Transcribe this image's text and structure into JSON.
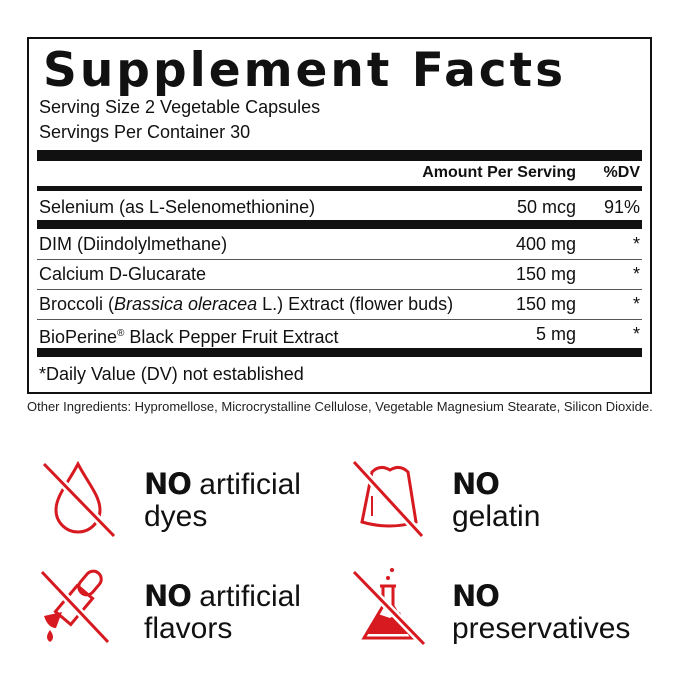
{
  "title": "Supplement Facts",
  "serving_size": "Serving Size 2 Vegetable Capsules",
  "servings_per_container": "Servings Per Container 30",
  "header": {
    "amount": "Amount Per Serving",
    "dv": "%DV"
  },
  "rows": [
    {
      "name": "Selenium (as L-Selenomethionine)",
      "amount": "50 mcg",
      "dv": "91%"
    },
    {
      "name": "DIM (Diindolylmethane)",
      "amount": "400 mg",
      "dv": "*"
    },
    {
      "name": "Calcium D-Glucarate",
      "amount": "150 mg",
      "dv": "*"
    },
    {
      "name_pre": "Broccoli (",
      "name_italic": "Brassica oleracea",
      "name_post": " L.) Extract (flower buds)",
      "amount": "150 mg",
      "dv": "*"
    },
    {
      "name_pre": "BioPerine",
      "name_sup": "®",
      "name_post": " Black Pepper Fruit Extract",
      "amount": "5 mg",
      "dv": "*"
    }
  ],
  "footnote": "*Daily Value (DV) not established",
  "other_ingredients": "Other Ingredients: Hypromellose, Microcrystalline Cellulose, Vegetable Magnesium Stearate, Silicon Dioxide.",
  "claims": [
    {
      "icon": "no-drop-icon",
      "bold": "NO",
      "line1": " artificial",
      "line2": "dyes"
    },
    {
      "icon": "no-gelatin-icon",
      "bold": "NO",
      "line1": "",
      "line2": "gelatin"
    },
    {
      "icon": "no-dropper-icon",
      "bold": "NO",
      "line1": " artificial",
      "line2": "flavors"
    },
    {
      "icon": "no-flask-icon",
      "bold": "NO",
      "line1": "",
      "line2": "preservatives"
    }
  ],
  "colors": {
    "accent": "#d71920",
    "text": "#111111"
  }
}
